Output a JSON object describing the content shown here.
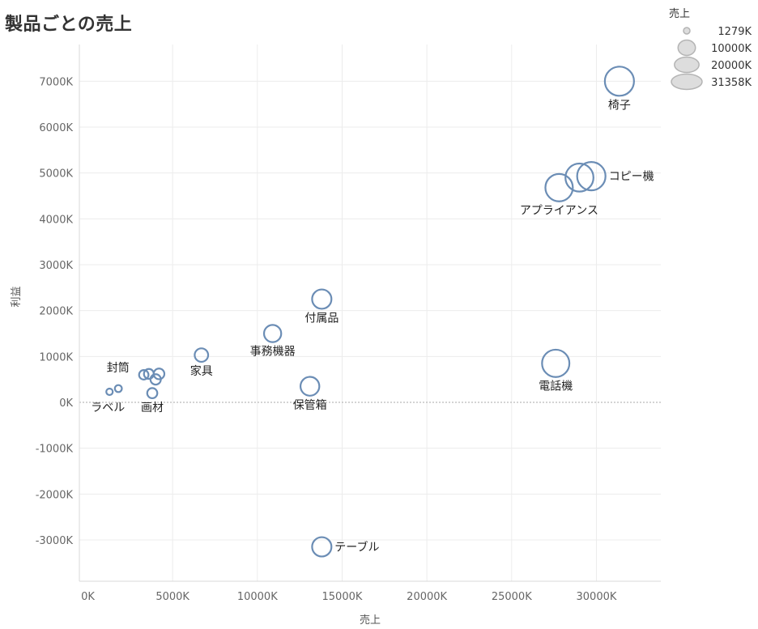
{
  "chart_data": {
    "type": "scatter",
    "title": "製品ごとの売上",
    "xlabel": "売上",
    "ylabel": "利益",
    "xlim": [
      -500,
      33800
    ],
    "ylim": [
      -3900,
      7800
    ],
    "xticks": [
      0,
      5000,
      10000,
      15000,
      20000,
      25000,
      30000
    ],
    "xtick_labels": [
      "0K",
      "5000K",
      "10000K",
      "15000K",
      "20000K",
      "25000K",
      "30000K"
    ],
    "yticks": [
      7000,
      6000,
      5000,
      4000,
      3000,
      2000,
      1000,
      0,
      -1000,
      -2000,
      -3000
    ],
    "ytick_labels": [
      "7000K",
      "6000K",
      "5000K",
      "4000K",
      "3000K",
      "2000K",
      "1000K",
      "0K",
      "-1000K",
      "-2000K",
      "-3000K"
    ],
    "grid": true,
    "colors": {
      "marker": "#6b8db5",
      "grid": "#ececec",
      "zero_line": "#aaaaaa",
      "legend_fill": "#dddddd",
      "legend_stroke": "#b4b4b4"
    },
    "size_legend": {
      "title": "売上",
      "placement": "top-right",
      "entries": [
        {
          "label": "1279K",
          "value": 1279
        },
        {
          "label": "10000K",
          "value": 10000
        },
        {
          "label": "20000K",
          "value": 20000
        },
        {
          "label": "31358K",
          "value": 31358
        }
      ]
    },
    "points": [
      {
        "x": 31358,
        "y": 7000,
        "label": "椅子",
        "label_pos": "below"
      },
      {
        "x": 29700,
        "y": 4930,
        "label": "コピー機",
        "label_pos": "right"
      },
      {
        "x": 29000,
        "y": 4900,
        "label": "",
        "label_pos": "none"
      },
      {
        "x": 27800,
        "y": 4680,
        "label": "アプライアンス",
        "label_pos": "below"
      },
      {
        "x": 27600,
        "y": 850,
        "label": "電話機",
        "label_pos": "below"
      },
      {
        "x": 13800,
        "y": 2250,
        "label": "付属品",
        "label_pos": "below"
      },
      {
        "x": 10900,
        "y": 1500,
        "label": "事務機器",
        "label_pos": "below"
      },
      {
        "x": 13100,
        "y": 350,
        "label": "保管箱",
        "label_pos": "below"
      },
      {
        "x": 13800,
        "y": -3150,
        "label": "テーブル",
        "label_pos": "right"
      },
      {
        "x": 6700,
        "y": 1030,
        "label": "家具",
        "label_pos": "below"
      },
      {
        "x": 4200,
        "y": 620,
        "label": "封筒",
        "label_pos": "left"
      },
      {
        "x": 3600,
        "y": 620,
        "label": "",
        "label_pos": "none"
      },
      {
        "x": 3300,
        "y": 600,
        "label": "",
        "label_pos": "none"
      },
      {
        "x": 4000,
        "y": 500,
        "label": "",
        "label_pos": "none"
      },
      {
        "x": 3800,
        "y": 200,
        "label": "画材",
        "label_pos": "below"
      },
      {
        "x": 1800,
        "y": 300,
        "label": "",
        "label_pos": "none"
      },
      {
        "x": 1279,
        "y": 230,
        "label": "ラベル",
        "label_pos": "below-left"
      }
    ]
  }
}
